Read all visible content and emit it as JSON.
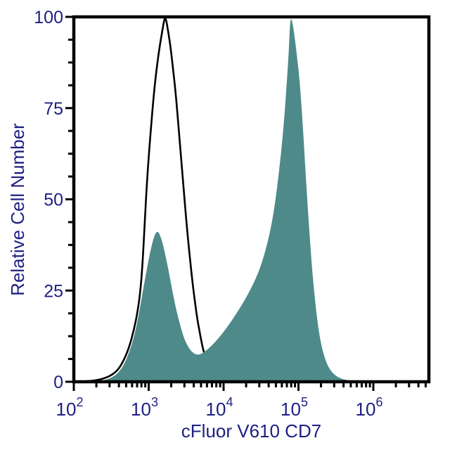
{
  "figure": {
    "background": "#ffffff",
    "axis_color": "#000000",
    "text_color": "#1e1f82",
    "curve_outline_color": "#000000",
    "fill_color": "#4e8a89"
  },
  "chart_data": {
    "type": "area",
    "subtype": "flow-cytometry-histogram-overlay",
    "title": "",
    "xlabel": "cFluor V610 CD7",
    "ylabel": "Relative Cell Number",
    "x_scale": "log10",
    "x_range_log": [
      2,
      6.74
    ],
    "ylim": [
      0,
      100
    ],
    "grid": false,
    "legend": "none",
    "x_major_ticks": [
      {
        "log": 2,
        "base": "10",
        "exp": "2"
      },
      {
        "log": 3,
        "base": "10",
        "exp": "3"
      },
      {
        "log": 4,
        "base": "10",
        "exp": "4"
      },
      {
        "log": 5,
        "base": "10",
        "exp": "5"
      },
      {
        "log": 6,
        "base": "10",
        "exp": "6"
      }
    ],
    "x_minor_multiples": [
      2,
      3,
      4,
      5,
      6,
      7,
      8,
      9
    ],
    "y_major_ticks": [
      {
        "value": 0,
        "label": "0"
      },
      {
        "value": 25,
        "label": "25"
      },
      {
        "value": 50,
        "label": "50"
      },
      {
        "value": 75,
        "label": "75"
      },
      {
        "value": 100,
        "label": "100"
      }
    ],
    "y_minor_step": 6.25,
    "series": [
      {
        "name": "open_histogram_control",
        "style": "open",
        "stroke": "#000000",
        "stroke_width": 2.6,
        "points_log10x_y": [
          [
            2.02,
            0
          ],
          [
            2.22,
            0.2
          ],
          [
            2.32,
            0.5
          ],
          [
            2.42,
            1
          ],
          [
            2.52,
            2
          ],
          [
            2.6,
            3.5
          ],
          [
            2.67,
            6
          ],
          [
            2.74,
            9.5
          ],
          [
            2.8,
            14
          ],
          [
            2.85,
            19
          ],
          [
            2.89,
            25
          ],
          [
            2.92,
            33
          ],
          [
            2.95,
            45
          ],
          [
            2.98,
            56
          ],
          [
            3.02,
            67
          ],
          [
            3.06,
            77
          ],
          [
            3.1,
            85
          ],
          [
            3.14,
            91
          ],
          [
            3.18,
            96
          ],
          [
            3.21,
            99.6
          ],
          [
            3.23,
            99.6
          ],
          [
            3.26,
            96
          ],
          [
            3.29,
            92
          ],
          [
            3.33,
            85
          ],
          [
            3.37,
            77
          ],
          [
            3.41,
            67
          ],
          [
            3.45,
            57
          ],
          [
            3.49,
            47
          ],
          [
            3.53,
            38
          ],
          [
            3.57,
            30
          ],
          [
            3.61,
            23
          ],
          [
            3.65,
            17
          ],
          [
            3.69,
            12.5
          ],
          [
            3.73,
            8.5
          ],
          [
            3.78,
            5.5
          ],
          [
            3.83,
            3.2
          ],
          [
            3.89,
            1.7
          ],
          [
            3.95,
            0.8
          ],
          [
            4.03,
            0.3
          ],
          [
            4.13,
            0
          ]
        ]
      },
      {
        "name": "filled_histogram_cd7",
        "style": "filled",
        "fill": "#4e8a89",
        "points_log10x_y": [
          [
            2.1,
            0
          ],
          [
            2.36,
            0.3
          ],
          [
            2.46,
            0.7
          ],
          [
            2.56,
            1.8
          ],
          [
            2.64,
            3.6
          ],
          [
            2.71,
            6.5
          ],
          [
            2.78,
            10.5
          ],
          [
            2.84,
            15.5
          ],
          [
            2.89,
            21
          ],
          [
            2.94,
            27
          ],
          [
            2.99,
            32.5
          ],
          [
            3.04,
            37.5
          ],
          [
            3.08,
            40.3
          ],
          [
            3.11,
            41.2
          ],
          [
            3.14,
            40.8
          ],
          [
            3.18,
            38.5
          ],
          [
            3.22,
            35
          ],
          [
            3.27,
            30
          ],
          [
            3.32,
            24.5
          ],
          [
            3.37,
            19.5
          ],
          [
            3.42,
            15.5
          ],
          [
            3.47,
            12
          ],
          [
            3.52,
            9.8
          ],
          [
            3.57,
            8.3
          ],
          [
            3.63,
            7.4
          ],
          [
            3.69,
            7.5
          ],
          [
            3.76,
            8.4
          ],
          [
            3.83,
            9.7
          ],
          [
            3.91,
            11.4
          ],
          [
            3.99,
            13.4
          ],
          [
            4.07,
            15.6
          ],
          [
            4.15,
            18
          ],
          [
            4.23,
            20.6
          ],
          [
            4.31,
            23.4
          ],
          [
            4.39,
            26.5
          ],
          [
            4.47,
            30.2
          ],
          [
            4.54,
            34.5
          ],
          [
            4.61,
            40
          ],
          [
            4.67,
            46.5
          ],
          [
            4.72,
            54
          ],
          [
            4.77,
            63
          ],
          [
            4.81,
            72
          ],
          [
            4.84,
            81
          ],
          [
            4.87,
            90
          ],
          [
            4.89,
            99.4
          ],
          [
            4.91,
            99.4
          ],
          [
            4.94,
            96
          ],
          [
            4.97,
            91
          ],
          [
            5.01,
            84
          ],
          [
            5.05,
            73
          ],
          [
            5.09,
            59
          ],
          [
            5.13,
            46
          ],
          [
            5.17,
            34
          ],
          [
            5.21,
            24.5
          ],
          [
            5.25,
            17
          ],
          [
            5.29,
            11.5
          ],
          [
            5.34,
            7.2
          ],
          [
            5.39,
            4.4
          ],
          [
            5.45,
            2.5
          ],
          [
            5.52,
            1.3
          ],
          [
            5.61,
            0.6
          ],
          [
            5.73,
            0.25
          ],
          [
            5.92,
            0
          ]
        ]
      }
    ]
  }
}
